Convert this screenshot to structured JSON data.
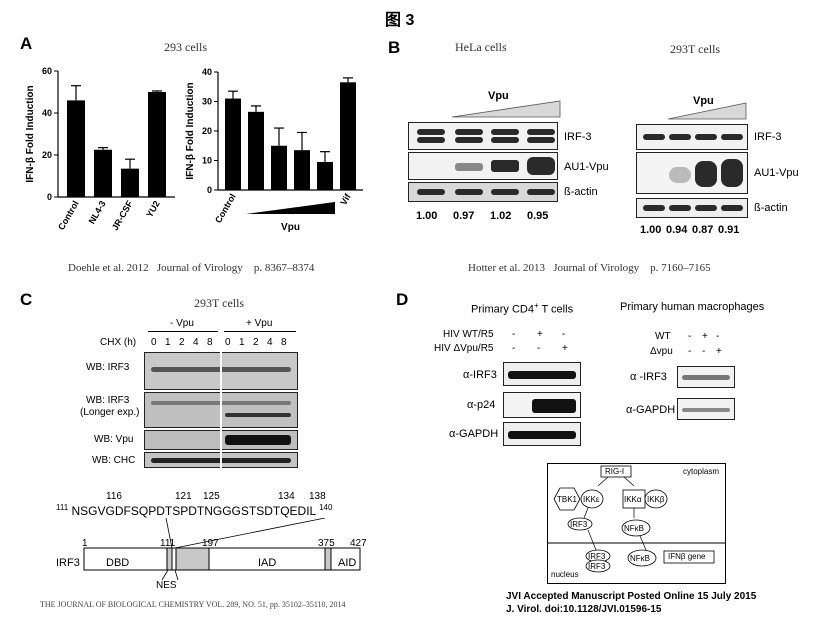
{
  "figure_title": "图 3",
  "panelA": {
    "letter": "A",
    "title": "293 cells",
    "citation": {
      "authors": "Doehle et al.",
      "year": "2012",
      "journal": "Journal of Virology",
      "pages": "p. 8367–8374"
    }
  },
  "panelB": {
    "letter": "B",
    "hela_title": "HeLa cells",
    "t293_title": "293T cells",
    "vpu_label": "Vpu",
    "rows": [
      "IRF-3",
      "AU1-Vpu",
      "ß-actin"
    ],
    "hela_quant": [
      "1.00",
      "0.97",
      "1.02",
      "0.95"
    ],
    "t293_quant": [
      "1.00",
      "0.94",
      "0.87",
      "0.91"
    ],
    "citation": {
      "authors": "Hotter et al.",
      "year": "2013",
      "journal": "Journal of Virology",
      "pages": "p. 7160–7165"
    }
  },
  "panelC": {
    "letter": "C",
    "title": "293T cells",
    "minus_vpu": "- Vpu",
    "plus_vpu": "+ Vpu",
    "chx_label": "CHX (h)",
    "timepoints": [
      "0",
      "1",
      "2",
      "4",
      "8",
      "0",
      "1",
      "2",
      "4",
      "8"
    ],
    "rows": [
      "WB: IRF3",
      "WB: IRF3",
      "(Longer exp.)",
      "WB: Vpu",
      "WB: CHC"
    ],
    "seq_numbers": [
      "116",
      "121",
      "125",
      "134",
      "138"
    ],
    "seq_start": "111",
    "seq_end": "140",
    "sequence": "NSGVGDFSQPDTSPDTNGGGSTSDTQEDIL",
    "domain_label": "IRF3",
    "positions": [
      "1",
      "111",
      "197",
      "375",
      "427"
    ],
    "domains": [
      "DBD",
      "IAD",
      "AID"
    ],
    "nes": "NES",
    "citation": "THE JOURNAL OF BIOLOGICAL CHEMISTRY  VOL. 289, NO. 51, pp. 35102–35110, 2014"
  },
  "panelD": {
    "letter": "D",
    "cd4_title": "Primary  CD4",
    "cd4_sup": "+",
    "cd4_suffix": " T cells",
    "mac_title": "Primary human macrophages",
    "cd4_conditions": [
      {
        "label": "HIV WT/R5",
        "signs": [
          "-",
          "+",
          "-"
        ]
      },
      {
        "label": "HIV ΔVpu/R5",
        "signs": [
          "-",
          "-",
          "+"
        ]
      }
    ],
    "mac_conditions": [
      {
        "label": "WT",
        "signs": [
          "-",
          "+",
          "-"
        ]
      },
      {
        "label": "Δvpu",
        "signs": [
          "-",
          "-",
          "+"
        ]
      }
    ],
    "cd4_rows": [
      "α-IRF3",
      "α-p24",
      "α-GAPDH"
    ],
    "mac_rows": [
      "α -IRF3",
      "α-GAPDH"
    ],
    "diagram": {
      "rigi": "RIG-I",
      "cytoplasm": "cytoplasm",
      "nucleus": "nucleus",
      "tbk1": "TBK1",
      "ikke": "IKKε",
      "ikka": "IKKα",
      "ikkb": "IKKβ",
      "irf3": "IRF3",
      "nfkb": "NFκB",
      "ifn_gene": "IFNβ gene"
    },
    "jvi_line1": "JVI Accepted Manuscript Posted Online 15 July 2015",
    "jvi_line2": "J. Virol. doi:10.1128/JVI.01596-15"
  },
  "chart_data": [
    {
      "type": "bar",
      "title": "293 cells",
      "ylabel": "IFN-β Fold Induction",
      "categories": [
        "Control",
        "NL4-3",
        "JR-CSF",
        "YU2"
      ],
      "values": [
        46,
        22.5,
        13.5,
        50
      ],
      "errors": [
        7,
        1,
        4.5,
        0.5
      ],
      "ylim": [
        0,
        60
      ],
      "yticks": [
        "0",
        "20",
        "40",
        "60"
      ]
    },
    {
      "type": "bar",
      "title": "",
      "ylabel": "IFN-β Fold Induction",
      "categories": [
        "Control",
        "",
        "",
        "",
        "",
        "Vif"
      ],
      "group_label": "Vpu",
      "values": [
        31,
        26.5,
        15,
        13.5,
        9.5,
        36.5
      ],
      "errors": [
        2.5,
        2,
        6,
        6,
        3.5,
        1.5
      ],
      "ylim": [
        0,
        40
      ],
      "yticks": [
        "0",
        "10",
        "20",
        "30",
        "40"
      ]
    }
  ]
}
